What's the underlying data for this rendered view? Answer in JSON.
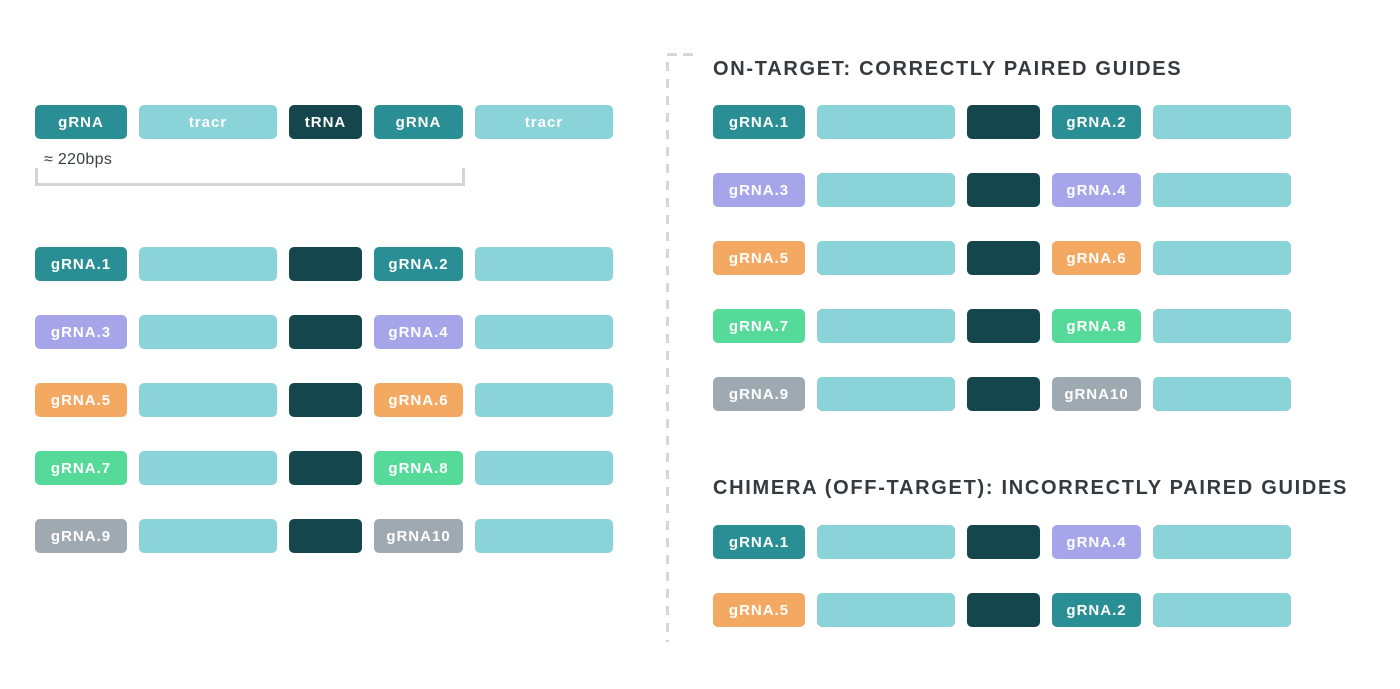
{
  "colors": {
    "teal": "#2A8E95",
    "light_teal": "#8AD3D8",
    "dark_teal": "#15454D",
    "purple": "#A7A5EA",
    "orange": "#F4A963",
    "green": "#55DA99",
    "gray": "#9FA9B2",
    "heading_text": "#333B40",
    "divider_gray": "#D6D6D6",
    "bracket_gray": "#D4D4D4"
  },
  "construct": {
    "size_label": "≈ 220bps",
    "blocks": [
      {
        "label": "gRNA",
        "color_key": "teal"
      },
      {
        "label": "tracr",
        "color_key": "light_teal"
      },
      {
        "label": "tRNA",
        "color_key": "dark_teal"
      },
      {
        "label": "gRNA",
        "color_key": "teal"
      },
      {
        "label": "tracr",
        "color_key": "light_teal"
      }
    ]
  },
  "guide_pool": {
    "rows": [
      {
        "g1": "gRNA.1",
        "c1": "teal",
        "g2": "gRNA.2",
        "c2": "teal"
      },
      {
        "g1": "gRNA.3",
        "c1": "purple",
        "g2": "gRNA.4",
        "c2": "purple"
      },
      {
        "g1": "gRNA.5",
        "c1": "orange",
        "g2": "gRNA.6",
        "c2": "orange"
      },
      {
        "g1": "gRNA.7",
        "c1": "green",
        "g2": "gRNA.8",
        "c2": "green"
      },
      {
        "g1": "gRNA.9",
        "c1": "gray",
        "g2": "gRNA10",
        "c2": "gray"
      }
    ]
  },
  "on_target": {
    "heading": "ON-TARGET: CORRECTLY PAIRED GUIDES",
    "rows": [
      {
        "g1": "gRNA.1",
        "c1": "teal",
        "g2": "gRNA.2",
        "c2": "teal"
      },
      {
        "g1": "gRNA.3",
        "c1": "purple",
        "g2": "gRNA.4",
        "c2": "purple"
      },
      {
        "g1": "gRNA.5",
        "c1": "orange",
        "g2": "gRNA.6",
        "c2": "orange"
      },
      {
        "g1": "gRNA.7",
        "c1": "green",
        "g2": "gRNA.8",
        "c2": "green"
      },
      {
        "g1": "gRNA.9",
        "c1": "gray",
        "g2": "gRNA10",
        "c2": "gray"
      }
    ]
  },
  "chimera": {
    "heading": "CHIMERA (OFF-TARGET): INCORRECTLY PAIRED GUIDES",
    "rows": [
      {
        "g1": "gRNA.1",
        "c1": "teal",
        "g2": "gRNA.4",
        "c2": "purple"
      },
      {
        "g1": "gRNA.5",
        "c1": "orange",
        "g2": "gRNA.2",
        "c2": "teal"
      }
    ]
  }
}
